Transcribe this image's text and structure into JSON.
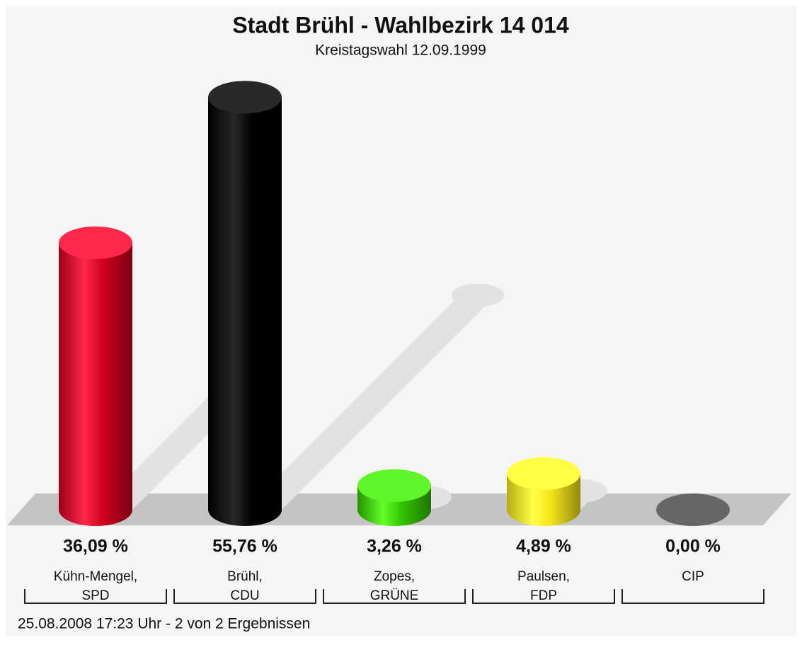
{
  "chart_data": {
    "type": "bar",
    "title": "Stadt Brühl - Wahlbezirk 14 014",
    "subtitle": "Kreistagswahl 12.09.1999",
    "categories": [
      [
        "Kühn-Mengel,",
        "SPD"
      ],
      [
        "Brühl,",
        "CDU"
      ],
      [
        "Zopes,",
        "GRÜNE"
      ],
      [
        "Paulsen,",
        "FDP"
      ],
      [
        "CIP"
      ]
    ],
    "values": [
      36.09,
      55.76,
      3.26,
      4.89,
      0
    ],
    "value_labels": [
      "36,09 %",
      "55,76 %",
      "3,26 %",
      "4,89 %",
      "0,00 %"
    ],
    "colors": [
      "#d0001e",
      "#000000",
      "#33c400",
      "#f4e41a",
      "#666666"
    ],
    "footer": "25.08.2008 17:23 Uhr - 2 von 2 Ergebnissen"
  }
}
